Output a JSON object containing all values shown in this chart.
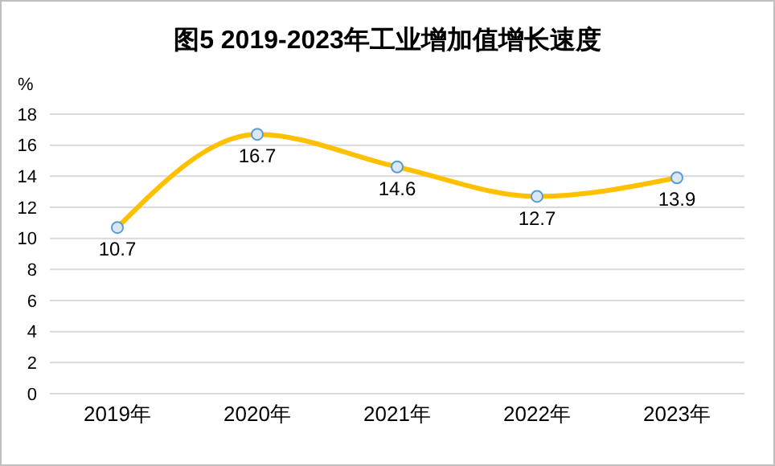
{
  "chart_data": {
    "type": "line",
    "title": "图5  2019-2023年工业增加值增长速度",
    "ylabel": "%",
    "categories": [
      "2019年",
      "2020年",
      "2021年",
      "2022年",
      "2023年"
    ],
    "series": [
      {
        "color": "#ffc000",
        "values": [
          10.7,
          16.7,
          14.6,
          12.7,
          13.9
        ]
      }
    ],
    "ylim": [
      0,
      18
    ],
    "yticks": [
      0,
      2,
      4,
      6,
      8,
      10,
      12,
      14,
      16,
      18
    ],
    "grid": "y",
    "marker": "circle",
    "data_labels": true
  }
}
